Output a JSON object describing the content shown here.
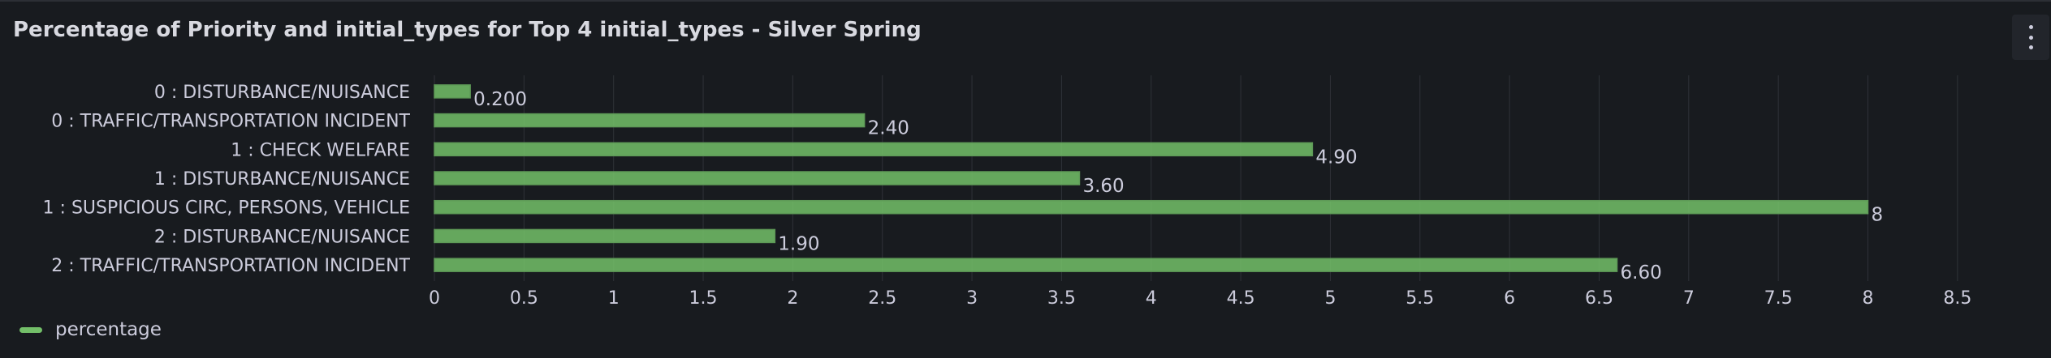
{
  "panel": {
    "title": "Percentage of Priority and initial_types for Top 4 initial_types - Silver Spring",
    "menu_icon": "ellipsis-vertical-icon"
  },
  "colors": {
    "bar_fill": "#73bf69",
    "grid": "#2f3238",
    "background": "#181b1f"
  },
  "chart_data": {
    "type": "bar",
    "orientation": "horizontal",
    "categories": [
      "0 : DISTURBANCE/NUISANCE",
      "0 : TRAFFIC/TRANSPORTATION INCIDENT",
      "1 : CHECK WELFARE",
      "1 : DISTURBANCE/NUISANCE",
      "1 : SUSPICIOUS CIRC, PERSONS, VEHICLE",
      "2 : DISTURBANCE/NUISANCE",
      "2 : TRAFFIC/TRANSPORTATION INCIDENT"
    ],
    "values": [
      0.2,
      2.4,
      4.9,
      3.6,
      8,
      1.9,
      6.6
    ],
    "value_labels": [
      "0.200",
      "2.40",
      "4.90",
      "3.60",
      "8",
      "1.90",
      "6.60"
    ],
    "xlim": [
      0,
      8.7
    ],
    "x_ticks": [
      "0",
      "0.5",
      "1",
      "1.5",
      "2",
      "2.5",
      "3",
      "3.5",
      "4",
      "4.5",
      "5",
      "5.5",
      "6",
      "6.5",
      "7",
      "7.5",
      "8",
      "8.5"
    ],
    "grid": true,
    "legend": {
      "position": "bottom-left",
      "entries": [
        "percentage"
      ]
    }
  }
}
